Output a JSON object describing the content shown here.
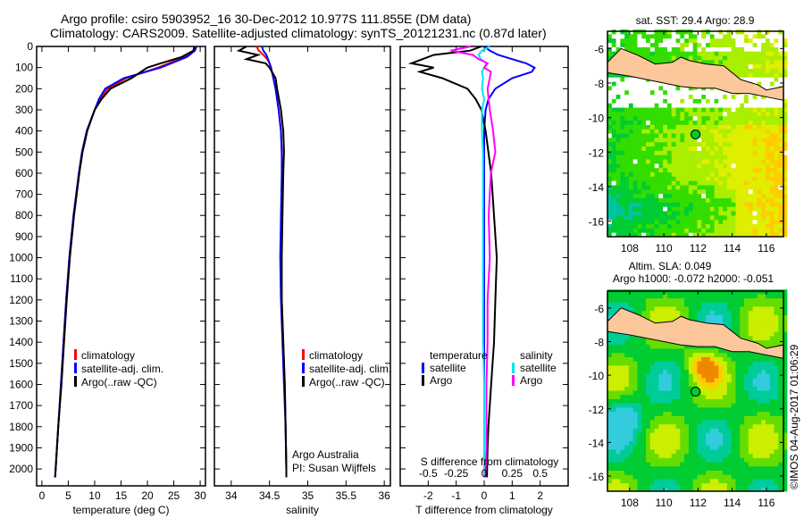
{
  "header": {
    "line1": "Argo profile: csiro 5903952_16 30-Dec-2012 10.977S 111.855E (DM data)",
    "line2": "Climatology: CARS2009. Satellite-adjusted climatology: synTS_20121231.nc (0.87d later)"
  },
  "credit": "©IMOS 04-Aug-2017 01:06:29",
  "colors": {
    "clim": "#ff0000",
    "sat": "#0000ff",
    "argo": "#000000",
    "sal_sat": "#00e5ee",
    "sal_argo": "#ff00ff",
    "land": "#fcc89b"
  },
  "chart_data": [
    {
      "type": "line",
      "id": "temperature",
      "xlabel": "temperature (deg C)",
      "xlim": [
        -1,
        31
      ],
      "ylim": [
        2080,
        0
      ],
      "xticks": [
        0,
        5,
        10,
        15,
        20,
        25,
        30
      ],
      "yticks": [
        0,
        100,
        200,
        300,
        400,
        500,
        600,
        700,
        800,
        900,
        1000,
        1100,
        1200,
        1300,
        1400,
        1500,
        1600,
        1700,
        1800,
        1900,
        2000
      ],
      "legend": [
        "climatology",
        "satellite-adj. clim.",
        "Argo(..raw -QC)"
      ],
      "depth": [
        0,
        20,
        50,
        80,
        100,
        150,
        200,
        250,
        300,
        400,
        500,
        600,
        800,
        1000,
        1200,
        1400,
        1600,
        1800,
        2000,
        2040
      ],
      "series": [
        {
          "name": "climatology",
          "color": "#ff0000",
          "values": [
            29,
            28.8,
            27,
            24,
            22,
            16,
            12.5,
            11,
            10,
            8.5,
            7.6,
            7,
            6,
            5.2,
            4.6,
            4.1,
            3.6,
            3.1,
            2.6,
            2.5
          ]
        },
        {
          "name": "satellite-adj. clim.",
          "color": "#0000ff",
          "values": [
            29.3,
            29,
            27.5,
            24.5,
            22.5,
            15.5,
            12,
            10.8,
            10,
            8.5,
            7.6,
            7,
            6,
            5.2,
            4.6,
            4.1,
            3.6,
            3.1,
            2.6,
            2.5
          ]
        },
        {
          "name": "Argo(..raw -QC)",
          "color": "#000000",
          "values": [
            28.9,
            28.7,
            26.5,
            22.5,
            20,
            17,
            13,
            11.3,
            10,
            8.6,
            7.7,
            7.1,
            6.1,
            5.3,
            4.7,
            4.2,
            3.7,
            3.1,
            2.6,
            2.5
          ]
        }
      ]
    },
    {
      "type": "line",
      "id": "salinity",
      "xlabel": "salinity",
      "xlim": [
        33.78,
        36.08
      ],
      "ylim": [
        2080,
        0
      ],
      "xticks": [
        34,
        34.5,
        35,
        35.5,
        36
      ],
      "legend": [
        "climatology",
        "satellite-adj. clim.",
        "Argo(..raw -QC)"
      ],
      "annotation": [
        "Argo Australia",
        "PI: Susan Wijffels"
      ],
      "depth": [
        0,
        20,
        40,
        60,
        80,
        100,
        150,
        200,
        300,
        400,
        500,
        600,
        800,
        1000,
        1200,
        1400,
        1600,
        1800,
        2000,
        2040
      ],
      "series": [
        {
          "name": "climatology",
          "color": "#ff0000",
          "values": [
            34.33,
            34.36,
            34.42,
            34.47,
            34.5,
            34.52,
            34.55,
            34.58,
            34.62,
            34.65,
            34.66,
            34.67,
            34.66,
            34.65,
            34.66,
            34.68,
            34.7,
            34.71,
            34.72,
            34.72
          ]
        },
        {
          "name": "satellite-adj. clim.",
          "color": "#0000ff",
          "values": [
            34.4,
            34.42,
            34.46,
            34.48,
            34.5,
            34.52,
            34.55,
            34.58,
            34.62,
            34.65,
            34.66,
            34.66,
            34.65,
            34.64,
            34.65,
            34.67,
            34.69,
            34.71,
            34.72,
            34.72
          ]
        },
        {
          "name": "Argo(..raw -QC)",
          "color": "#000000",
          "values": [
            34.2,
            34.1,
            34.35,
            34.2,
            34.45,
            34.5,
            34.58,
            34.6,
            34.65,
            34.68,
            34.69,
            34.68,
            34.67,
            34.66,
            34.66,
            34.68,
            34.7,
            34.71,
            34.72,
            34.72
          ]
        }
      ]
    },
    {
      "type": "line",
      "id": "difference",
      "xlabel": "T difference from climatology",
      "xlabel2": "S difference from climatology",
      "xlim": [
        -3,
        3
      ],
      "ylim": [
        2080,
        0
      ],
      "xticks": [
        -2,
        -1,
        0,
        1,
        2
      ],
      "xticks2": [
        -0.5,
        -0.25,
        0,
        0.25,
        0.5
      ],
      "legend_t": {
        "title": "temperature",
        "items": [
          "satellite",
          "Argo"
        ]
      },
      "legend_s": {
        "title": "salinity",
        "items": [
          "satellite",
          "Argo"
        ]
      },
      "depth": [
        0,
        20,
        40,
        60,
        80,
        100,
        120,
        150,
        200,
        250,
        300,
        400,
        500,
        600,
        800,
        1000,
        1200,
        1400,
        1600,
        1800,
        1900,
        2040
      ],
      "series": [
        {
          "name": "T satellite",
          "color": "#0000ff",
          "scale": "T",
          "values": [
            0,
            0.2,
            0.5,
            1.0,
            1.5,
            1.8,
            1.7,
            1.0,
            0.4,
            0.15,
            0.05,
            0,
            0,
            0,
            0,
            0,
            0,
            0,
            0,
            0,
            0,
            0
          ]
        },
        {
          "name": "T Argo",
          "color": "#000000",
          "scale": "T",
          "values": [
            -0.1,
            -0.5,
            -1.8,
            -2.2,
            -2.6,
            -1.8,
            -2.3,
            -1.5,
            -0.6,
            -0.3,
            -0.1,
            0.05,
            0.15,
            0.25,
            0.35,
            0.45,
            0.4,
            0.35,
            0.25,
            0.15,
            0.12,
            0.1
          ]
        },
        {
          "name": "S satellite",
          "color": "#00e5ee",
          "scale": "S",
          "values": [
            0.05,
            -0.02,
            -0.05,
            -0.03,
            0.02,
            0,
            -0.02,
            -0.01,
            -0.02,
            0,
            -0.02,
            -0.02,
            -0.01,
            -0.01,
            -0.01,
            -0.01,
            -0.01,
            -0.01,
            0,
            0,
            0,
            0
          ]
        },
        {
          "name": "S Argo",
          "color": "#ff00ff",
          "scale": "S",
          "values": [
            -0.12,
            -0.3,
            -0.1,
            -0.05,
            0.03,
            0,
            0.06,
            0.05,
            0.03,
            0.04,
            0.05,
            0.08,
            0.1,
            0.06,
            0.04,
            0.05,
            0.03,
            0.03,
            0.02,
            0.02,
            0.02,
            0.01
          ]
        }
      ]
    },
    {
      "type": "heatmap",
      "id": "sst-map",
      "title": "sat. SST: 29.4  Argo: 28.9",
      "xticks": [
        108,
        110,
        112,
        114,
        116
      ],
      "yticks": [
        -6,
        -8,
        -10,
        -12,
        -14,
        -16
      ],
      "xlim": [
        106.7,
        117
      ],
      "ylim": [
        -16.9,
        -5
      ],
      "float_position": [
        111.855,
        -10.977
      ]
    },
    {
      "type": "heatmap",
      "id": "sla-map",
      "title": "Altim. SLA: 0.049",
      "subtitle": "Argo h1000: -0.072 h2000: -0.051",
      "xticks": [
        108,
        110,
        112,
        114,
        116
      ],
      "yticks": [
        -6,
        -8,
        -10,
        -12,
        -14,
        -16
      ],
      "xlim": [
        106.7,
        117
      ],
      "ylim": [
        -16.9,
        -5
      ],
      "float_position": [
        111.855,
        -10.977
      ]
    }
  ]
}
